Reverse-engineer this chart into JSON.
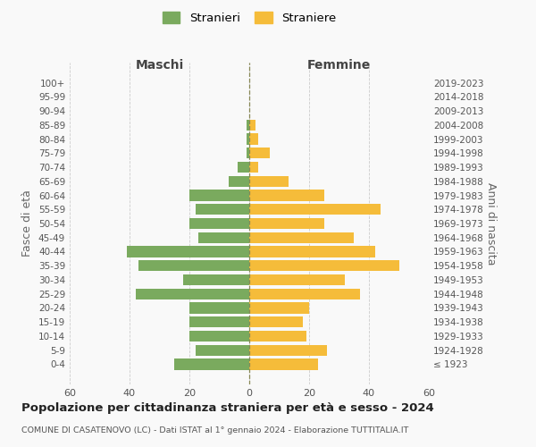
{
  "age_groups": [
    "100+",
    "95-99",
    "90-94",
    "85-89",
    "80-84",
    "75-79",
    "70-74",
    "65-69",
    "60-64",
    "55-59",
    "50-54",
    "45-49",
    "40-44",
    "35-39",
    "30-34",
    "25-29",
    "20-24",
    "15-19",
    "10-14",
    "5-9",
    "0-4"
  ],
  "birth_years": [
    "≤ 1923",
    "1924-1928",
    "1929-1933",
    "1934-1938",
    "1939-1943",
    "1944-1948",
    "1949-1953",
    "1954-1958",
    "1959-1963",
    "1964-1968",
    "1969-1973",
    "1974-1978",
    "1979-1983",
    "1984-1988",
    "1989-1993",
    "1994-1998",
    "1999-2003",
    "2004-2008",
    "2009-2013",
    "2014-2018",
    "2019-2023"
  ],
  "males": [
    0,
    0,
    0,
    1,
    1,
    1,
    4,
    7,
    20,
    18,
    20,
    17,
    41,
    37,
    22,
    38,
    20,
    20,
    20,
    18,
    25
  ],
  "females": [
    0,
    0,
    0,
    2,
    3,
    7,
    3,
    13,
    25,
    44,
    25,
    35,
    42,
    50,
    32,
    37,
    20,
    18,
    19,
    26,
    23
  ],
  "male_color": "#7aaa5e",
  "female_color": "#f5bc3a",
  "background_color": "#f9f9f9",
  "grid_color": "#cccccc",
  "title": "Popolazione per cittadinanza straniera per età e sesso - 2024",
  "subtitle": "COMUNE DI CASATENOVO (LC) - Dati ISTAT al 1° gennaio 2024 - Elaborazione TUTTITALIA.IT",
  "ylabel_left": "Fasce di età",
  "ylabel_right": "Anni di nascita",
  "xlabel_left": "Maschi",
  "xlabel_right": "Femmine",
  "legend_male": "Stranieri",
  "legend_female": "Straniere",
  "xlim": 60
}
